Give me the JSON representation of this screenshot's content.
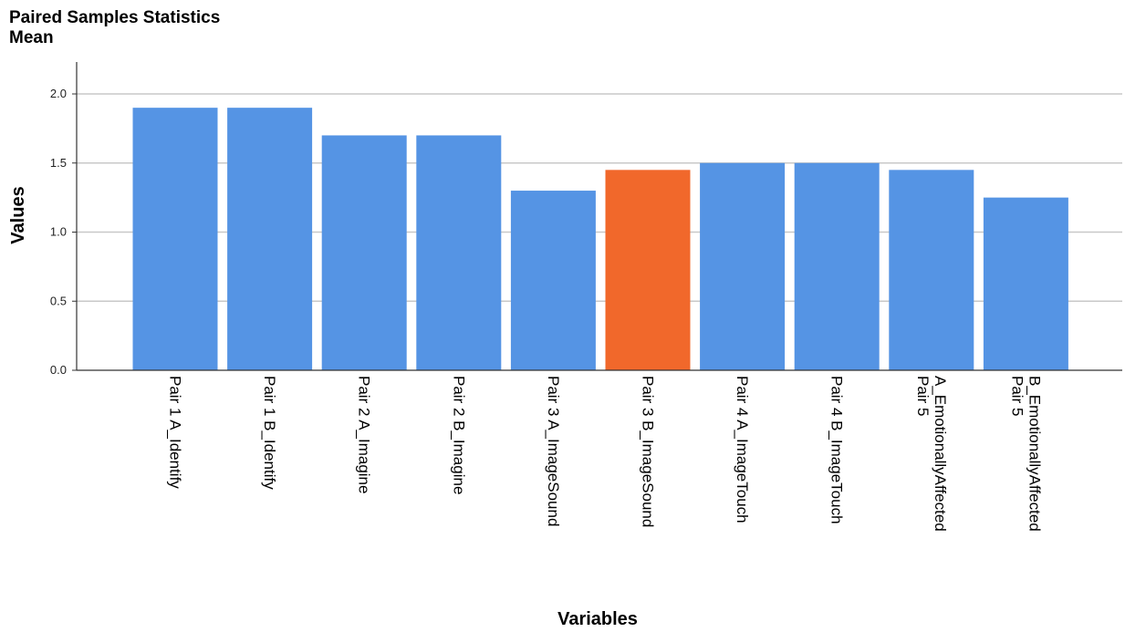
{
  "chart_data": {
    "type": "bar",
    "title": "Paired Samples Statistics",
    "subtitle": "Mean",
    "xlabel": "Variables",
    "ylabel": "Values",
    "ylim": [
      0,
      2.2
    ],
    "yticks": [
      "0.0",
      "0.5",
      "1.0",
      "1.5",
      "2.0"
    ],
    "grid": true,
    "categories": [
      [
        "Pair 1 A_Identify"
      ],
      [
        "Pair 1 B_Identify"
      ],
      [
        "Pair 2 A_Imagine"
      ],
      [
        "Pair 2 B_Imagine"
      ],
      [
        "Pair 3 A_ImageSound"
      ],
      [
        "Pair 3 B_ImageSound"
      ],
      [
        "Pair 4 A_ImageTouch"
      ],
      [
        "Pair 4 B_ImageTouch"
      ],
      [
        "Pair 5",
        "A_EmotionallyAffected"
      ],
      [
        "Pair 5",
        "B_EmotionallyAffected"
      ]
    ],
    "values": [
      1.9,
      1.9,
      1.7,
      1.7,
      1.3,
      1.45,
      1.5,
      1.5,
      1.45,
      1.25
    ],
    "highlight_index": 5,
    "colors": {
      "bar": "#5594e4",
      "highlight": "#f1682b",
      "grid": "#c8c8c8",
      "axis": "#333333"
    }
  }
}
